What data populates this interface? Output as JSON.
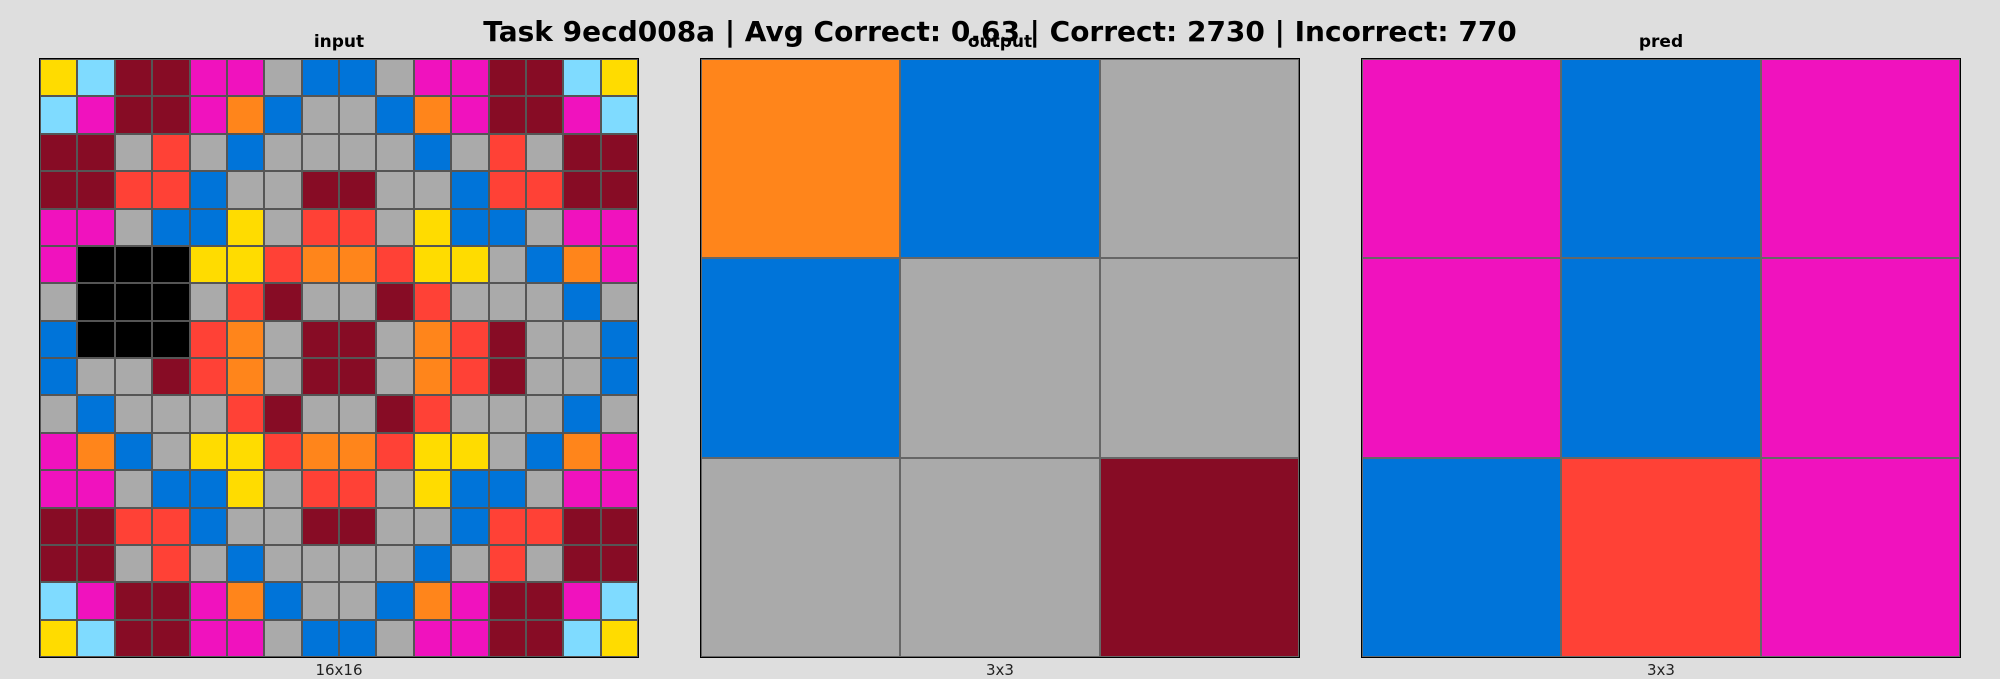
{
  "header": {
    "title": "Task 9ecd008a | Avg Correct: 0.63 | Correct: 2730 | Incorrect: 770"
  },
  "palette": {
    "0": "#000000",
    "1": "#0074d9",
    "2": "#ff4136",
    "3": "#2ecc40",
    "4": "#ffdc00",
    "5": "#aaaaaa",
    "6": "#f012be",
    "7": "#ff851b",
    "8": "#7fdbff",
    "9": "#870c25"
  },
  "panels": {
    "input": {
      "title": "input",
      "caption": "16x16",
      "grid": [
        [
          4,
          8,
          9,
          9,
          6,
          6,
          5,
          1,
          1,
          5,
          6,
          6,
          9,
          9,
          8,
          4
        ],
        [
          8,
          6,
          9,
          9,
          6,
          7,
          1,
          5,
          5,
          1,
          7,
          6,
          9,
          9,
          6,
          8
        ],
        [
          9,
          9,
          5,
          2,
          5,
          1,
          5,
          5,
          5,
          5,
          1,
          5,
          2,
          5,
          9,
          9
        ],
        [
          9,
          9,
          2,
          2,
          1,
          5,
          5,
          9,
          9,
          5,
          5,
          1,
          2,
          2,
          9,
          9
        ],
        [
          6,
          6,
          5,
          1,
          1,
          4,
          5,
          2,
          2,
          5,
          4,
          1,
          1,
          5,
          6,
          6
        ],
        [
          6,
          0,
          0,
          0,
          4,
          4,
          2,
          7,
          7,
          2,
          4,
          4,
          5,
          1,
          7,
          6
        ],
        [
          5,
          0,
          0,
          0,
          5,
          2,
          9,
          5,
          5,
          9,
          2,
          5,
          5,
          5,
          1,
          5
        ],
        [
          1,
          0,
          0,
          0,
          2,
          7,
          5,
          9,
          9,
          5,
          7,
          2,
          9,
          5,
          5,
          1
        ],
        [
          1,
          5,
          5,
          9,
          2,
          7,
          5,
          9,
          9,
          5,
          7,
          2,
          9,
          5,
          5,
          1
        ],
        [
          5,
          1,
          5,
          5,
          5,
          2,
          9,
          5,
          5,
          9,
          2,
          5,
          5,
          5,
          1,
          5
        ],
        [
          6,
          7,
          1,
          5,
          4,
          4,
          2,
          7,
          7,
          2,
          4,
          4,
          5,
          1,
          7,
          6
        ],
        [
          6,
          6,
          5,
          1,
          1,
          4,
          5,
          2,
          2,
          5,
          4,
          1,
          1,
          5,
          6,
          6
        ],
        [
          9,
          9,
          2,
          2,
          1,
          5,
          5,
          9,
          9,
          5,
          5,
          1,
          2,
          2,
          9,
          9
        ],
        [
          9,
          9,
          5,
          2,
          5,
          1,
          5,
          5,
          5,
          5,
          1,
          5,
          2,
          5,
          9,
          9
        ],
        [
          8,
          6,
          9,
          9,
          6,
          7,
          1,
          5,
          5,
          1,
          7,
          6,
          9,
          9,
          6,
          8
        ],
        [
          4,
          8,
          9,
          9,
          6,
          6,
          5,
          1,
          1,
          5,
          6,
          6,
          9,
          9,
          8,
          4
        ]
      ]
    },
    "output": {
      "title": "output",
      "caption": "3x3",
      "grid": [
        [
          7,
          1,
          5
        ],
        [
          1,
          5,
          5
        ],
        [
          5,
          5,
          9
        ]
      ]
    },
    "pred": {
      "title": "pred",
      "caption": "3x3",
      "grid": [
        [
          6,
          1,
          6
        ],
        [
          6,
          1,
          6
        ],
        [
          1,
          2,
          6
        ]
      ]
    }
  }
}
